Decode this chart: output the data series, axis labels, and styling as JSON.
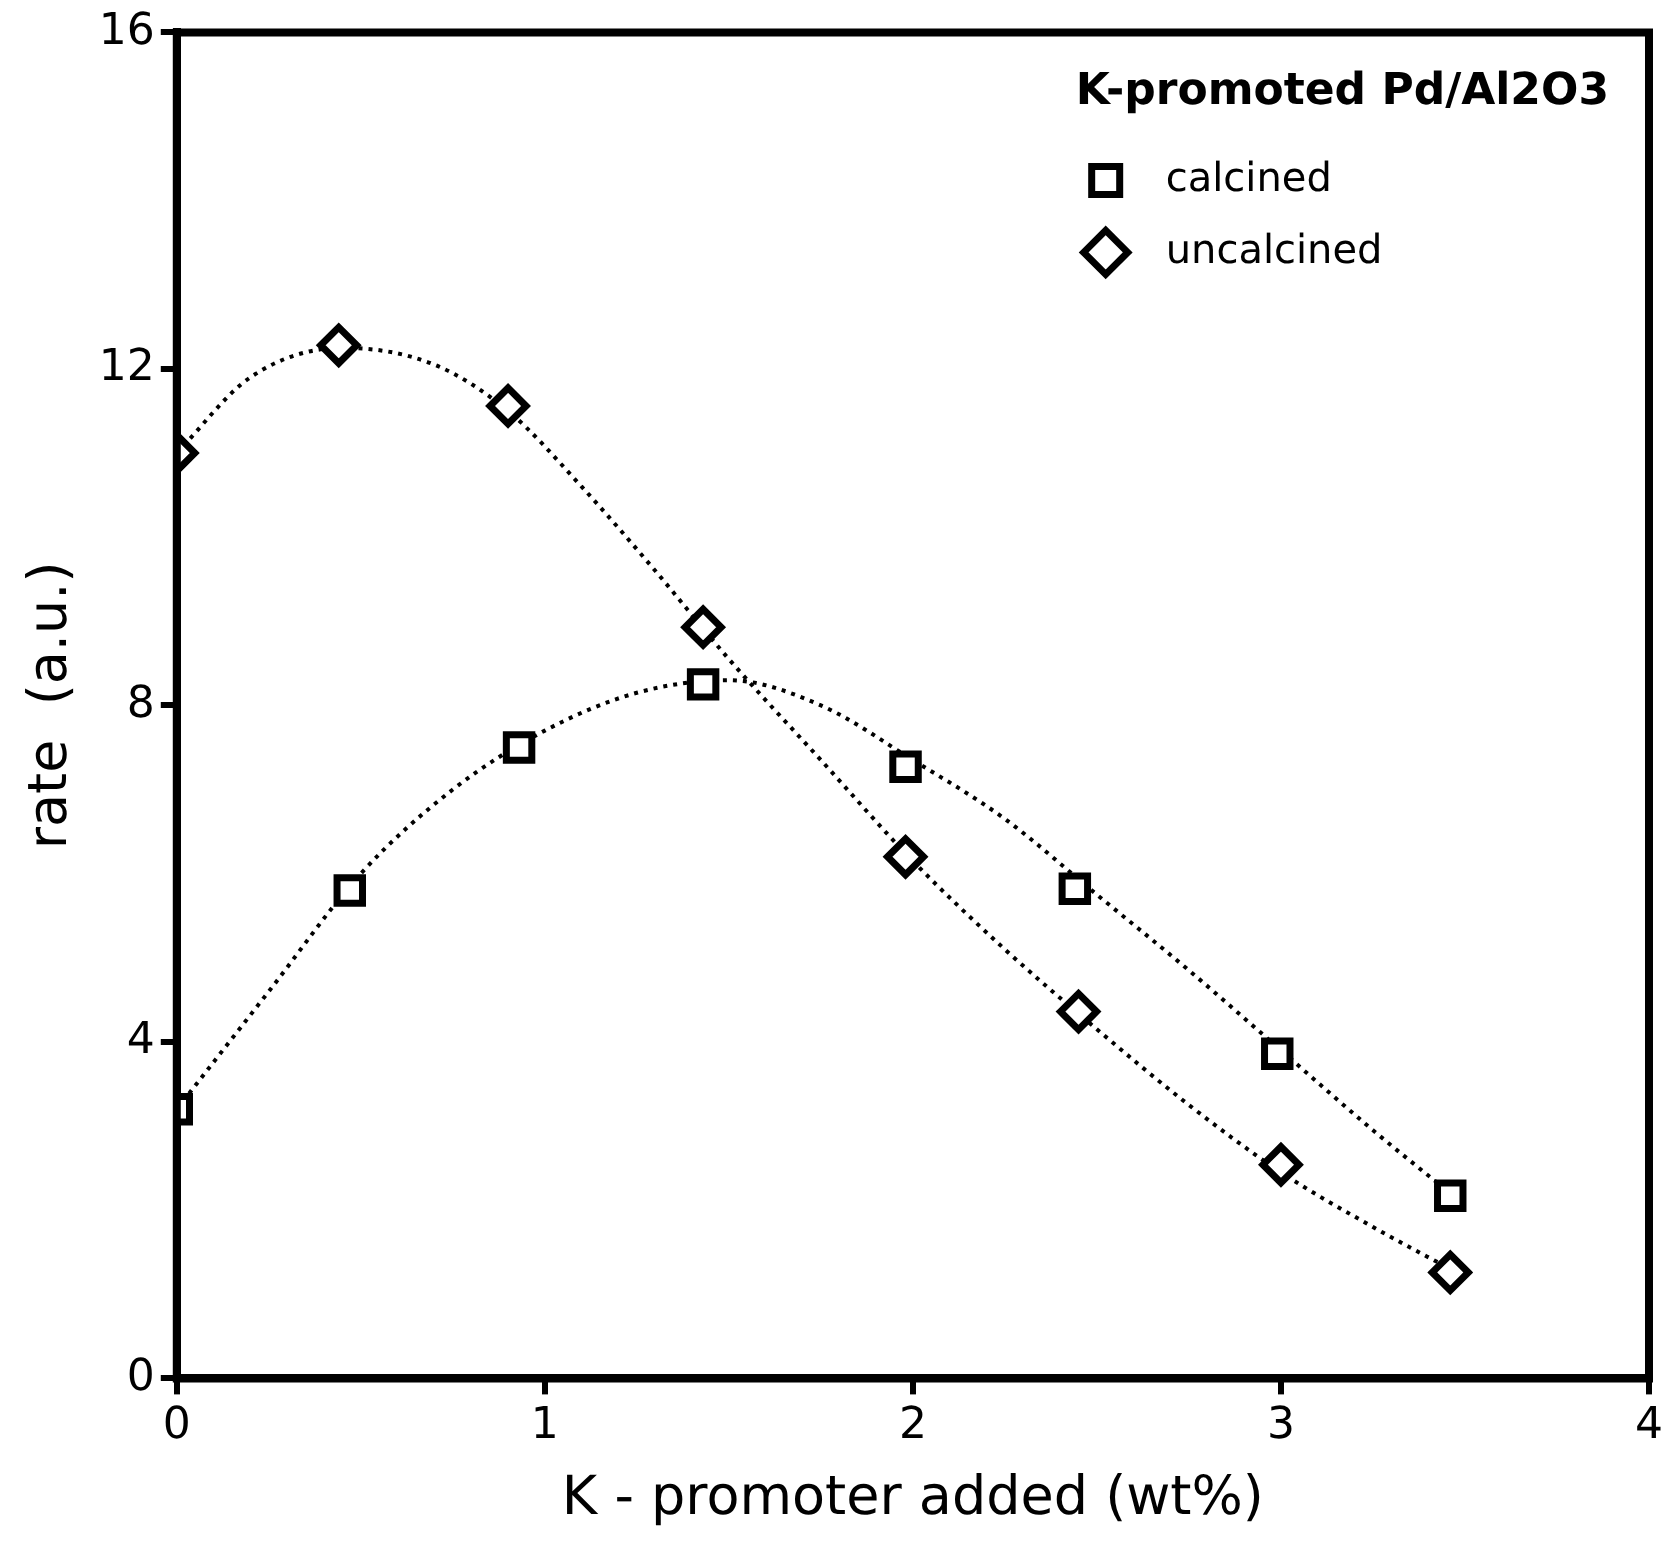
{
  "chart_data": {
    "type": "scatter",
    "xlabel": "K - promoter added (wt%)",
    "ylabel": "rate  (a.u.)",
    "legend_title": "K-promoted Pd/Al2O3",
    "legend": "top right",
    "xlim": [
      0,
      4
    ],
    "xticks": [
      0,
      1,
      2,
      3,
      4
    ],
    "ylim": [
      0,
      16
    ],
    "yticks": [
      0,
      4,
      8,
      12,
      16
    ],
    "grid": false,
    "series": [
      {
        "name": "calcined",
        "color": "#000000",
        "marker": "square",
        "x": [
          0,
          0.47,
          0.93,
          1.43,
          1.98,
          2.44,
          2.99,
          3.46
        ],
        "values": [
          3.2,
          5.8,
          7.5,
          8.25,
          7.27,
          5.82,
          3.86,
          2.17
        ]
      },
      {
        "name": "uncalcined",
        "color": "#000000",
        "marker": "diamond",
        "x": [
          0,
          0.44,
          0.9,
          1.43,
          1.98,
          2.45,
          3.0,
          3.46
        ],
        "values": [
          11.0,
          12.28,
          11.56,
          8.93,
          6.2,
          4.36,
          2.54,
          1.26
        ]
      },
      {
        "type": "line",
        "color": "#000000",
        "line_style": "dotted",
        "marker": "none",
        "x": [
          0,
          0.25,
          0.5,
          0.75,
          1.0,
          1.25,
          1.5,
          1.75,
          2.0,
          2.25,
          2.5,
          2.75,
          3.0,
          3.25,
          3.46
        ],
        "values": [
          3.2,
          4.6,
          6.0,
          7.0,
          7.7,
          8.15,
          8.3,
          8.0,
          7.35,
          6.65,
          5.75,
          4.85,
          3.9,
          2.95,
          2.2
        ]
      },
      {
        "type": "line",
        "color": "#000000",
        "line_style": "dotted",
        "marker": "none",
        "x": [
          0,
          0.2,
          0.45,
          0.7,
          0.9,
          1.1,
          1.3,
          1.5,
          1.75,
          2.0,
          2.25,
          2.5,
          2.75,
          3.0,
          3.25,
          3.46
        ],
        "values": [
          11.0,
          11.9,
          12.25,
          12.05,
          11.5,
          10.6,
          9.6,
          8.55,
          7.35,
          6.15,
          5.1,
          4.15,
          3.25,
          2.45,
          1.8,
          1.3
        ]
      }
    ]
  }
}
